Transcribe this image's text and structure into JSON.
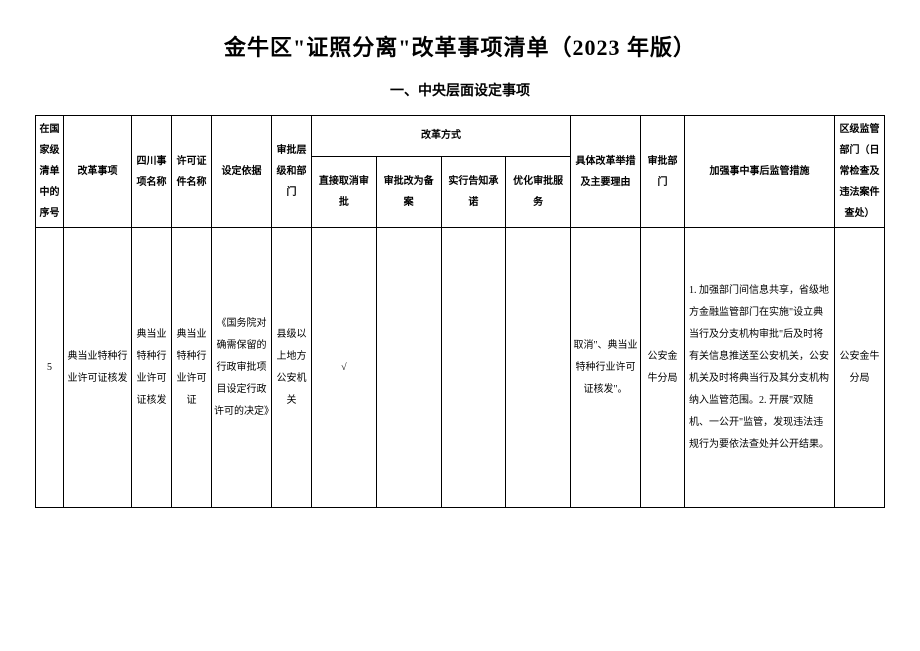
{
  "document": {
    "title": "金牛区\"证照分离\"改革事项清单（2023 年版）",
    "subtitle": "一、中央层面设定事项"
  },
  "table": {
    "headers": {
      "seq": "在国家级清单中的序号",
      "item": "改革事项",
      "scname": "四川事项名称",
      "certname": "许可证件名称",
      "basis": "设定依据",
      "level": "审批层级和部门",
      "method_group": "改革方式",
      "method_cancel": "直接取消审批",
      "method_record": "审批改为备案",
      "method_notify": "实行告知承诺",
      "method_optimize": "优化审批服务",
      "measure": "具体改革举措及主要理由",
      "dept": "审批部门",
      "supervise": "加强事中事后监管措施",
      "district": "区级监管部门（日常检查及违法案件查处）"
    },
    "rows": [
      {
        "seq": "5",
        "item": "典当业特种行业许可证核发",
        "scname": "典当业特种行业许可证核发",
        "certname": "典当业特种行业许可证",
        "basis": "《国务院对确需保留的行政审批项目设定行政许可的决定》",
        "level": "县级以上地方公安机关",
        "method_cancel": "√",
        "method_record": "",
        "method_notify": "",
        "method_optimize": "",
        "measure": "取消\"、典当业特种行业许可证核发\"。",
        "dept": "公安金牛分局",
        "supervise": "1. 加强部门间信息共享，省级地方金融监管部门在实施\"设立典当行及分支机构审批\"后及时将有关信息推送至公安机关，公安机关及时将典当行及其分支机构纳入监管范围。2. 开展\"双随机、一公开\"监管，发现违法违规行为要依法查处并公开结果。",
        "district": "公安金牛分局"
      }
    ]
  },
  "style": {
    "background_color": "#ffffff",
    "border_color": "#000000",
    "text_color": "#000000",
    "title_fontsize": 22,
    "subtitle_fontsize": 14,
    "cell_fontsize": 10
  }
}
